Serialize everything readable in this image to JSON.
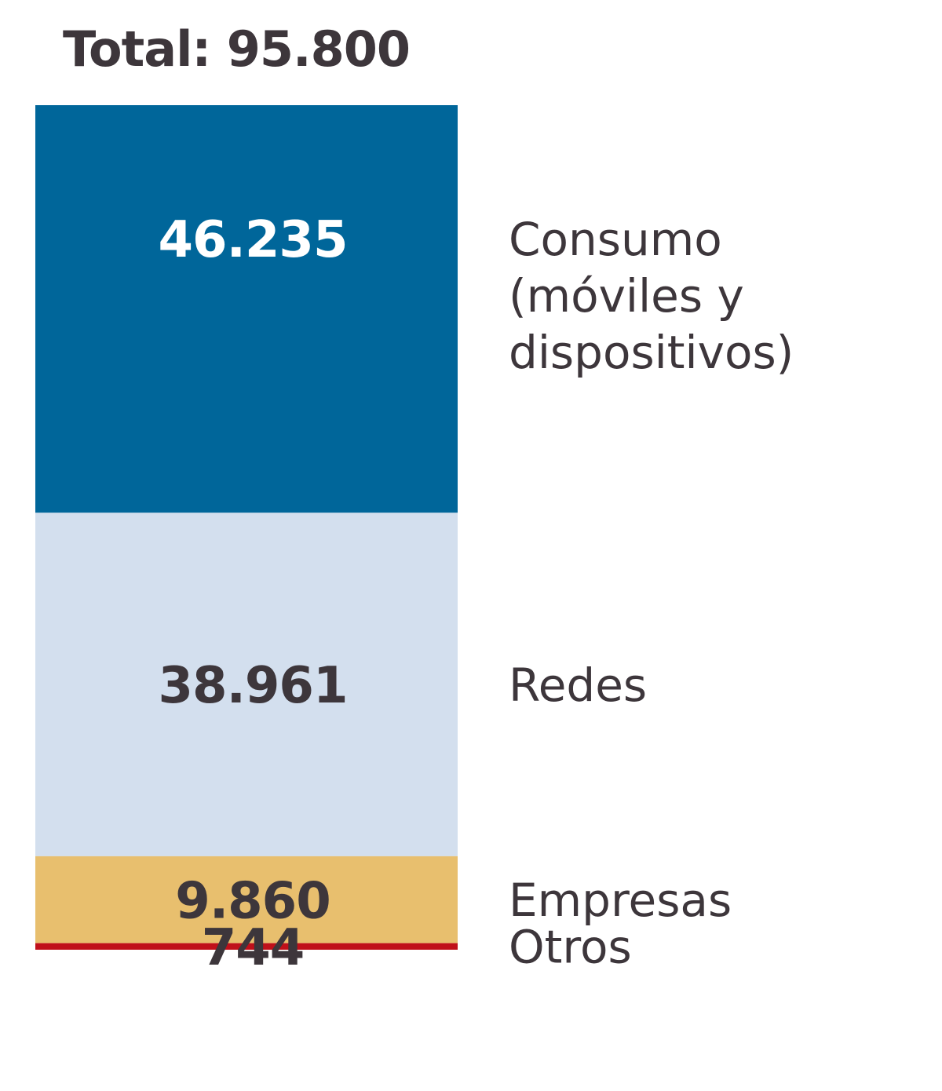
{
  "chart_data": {
    "type": "bar",
    "title": "Total: 95.800",
    "stacked": true,
    "total": 95800,
    "segments": [
      {
        "label_lines": [
          "Consumo",
          "(móviles y",
          "dispositivos)"
        ],
        "value": 46235,
        "value_label": "46.235",
        "color": "#00669a",
        "value_color": "#ffffff"
      },
      {
        "label_lines": [
          "Redes"
        ],
        "value": 38961,
        "value_label": "38.961",
        "color": "#d3dfee",
        "value_color": "#3d363b"
      },
      {
        "label_lines": [
          "Empresas"
        ],
        "value": 9860,
        "value_label": "9.860",
        "color": "#e8bf6e",
        "value_color": "#3d363b"
      },
      {
        "label_lines": [
          "Otros"
        ],
        "value": 744,
        "value_label": "744",
        "color": "#c0101a",
        "value_color": "#3d363b"
      }
    ]
  }
}
